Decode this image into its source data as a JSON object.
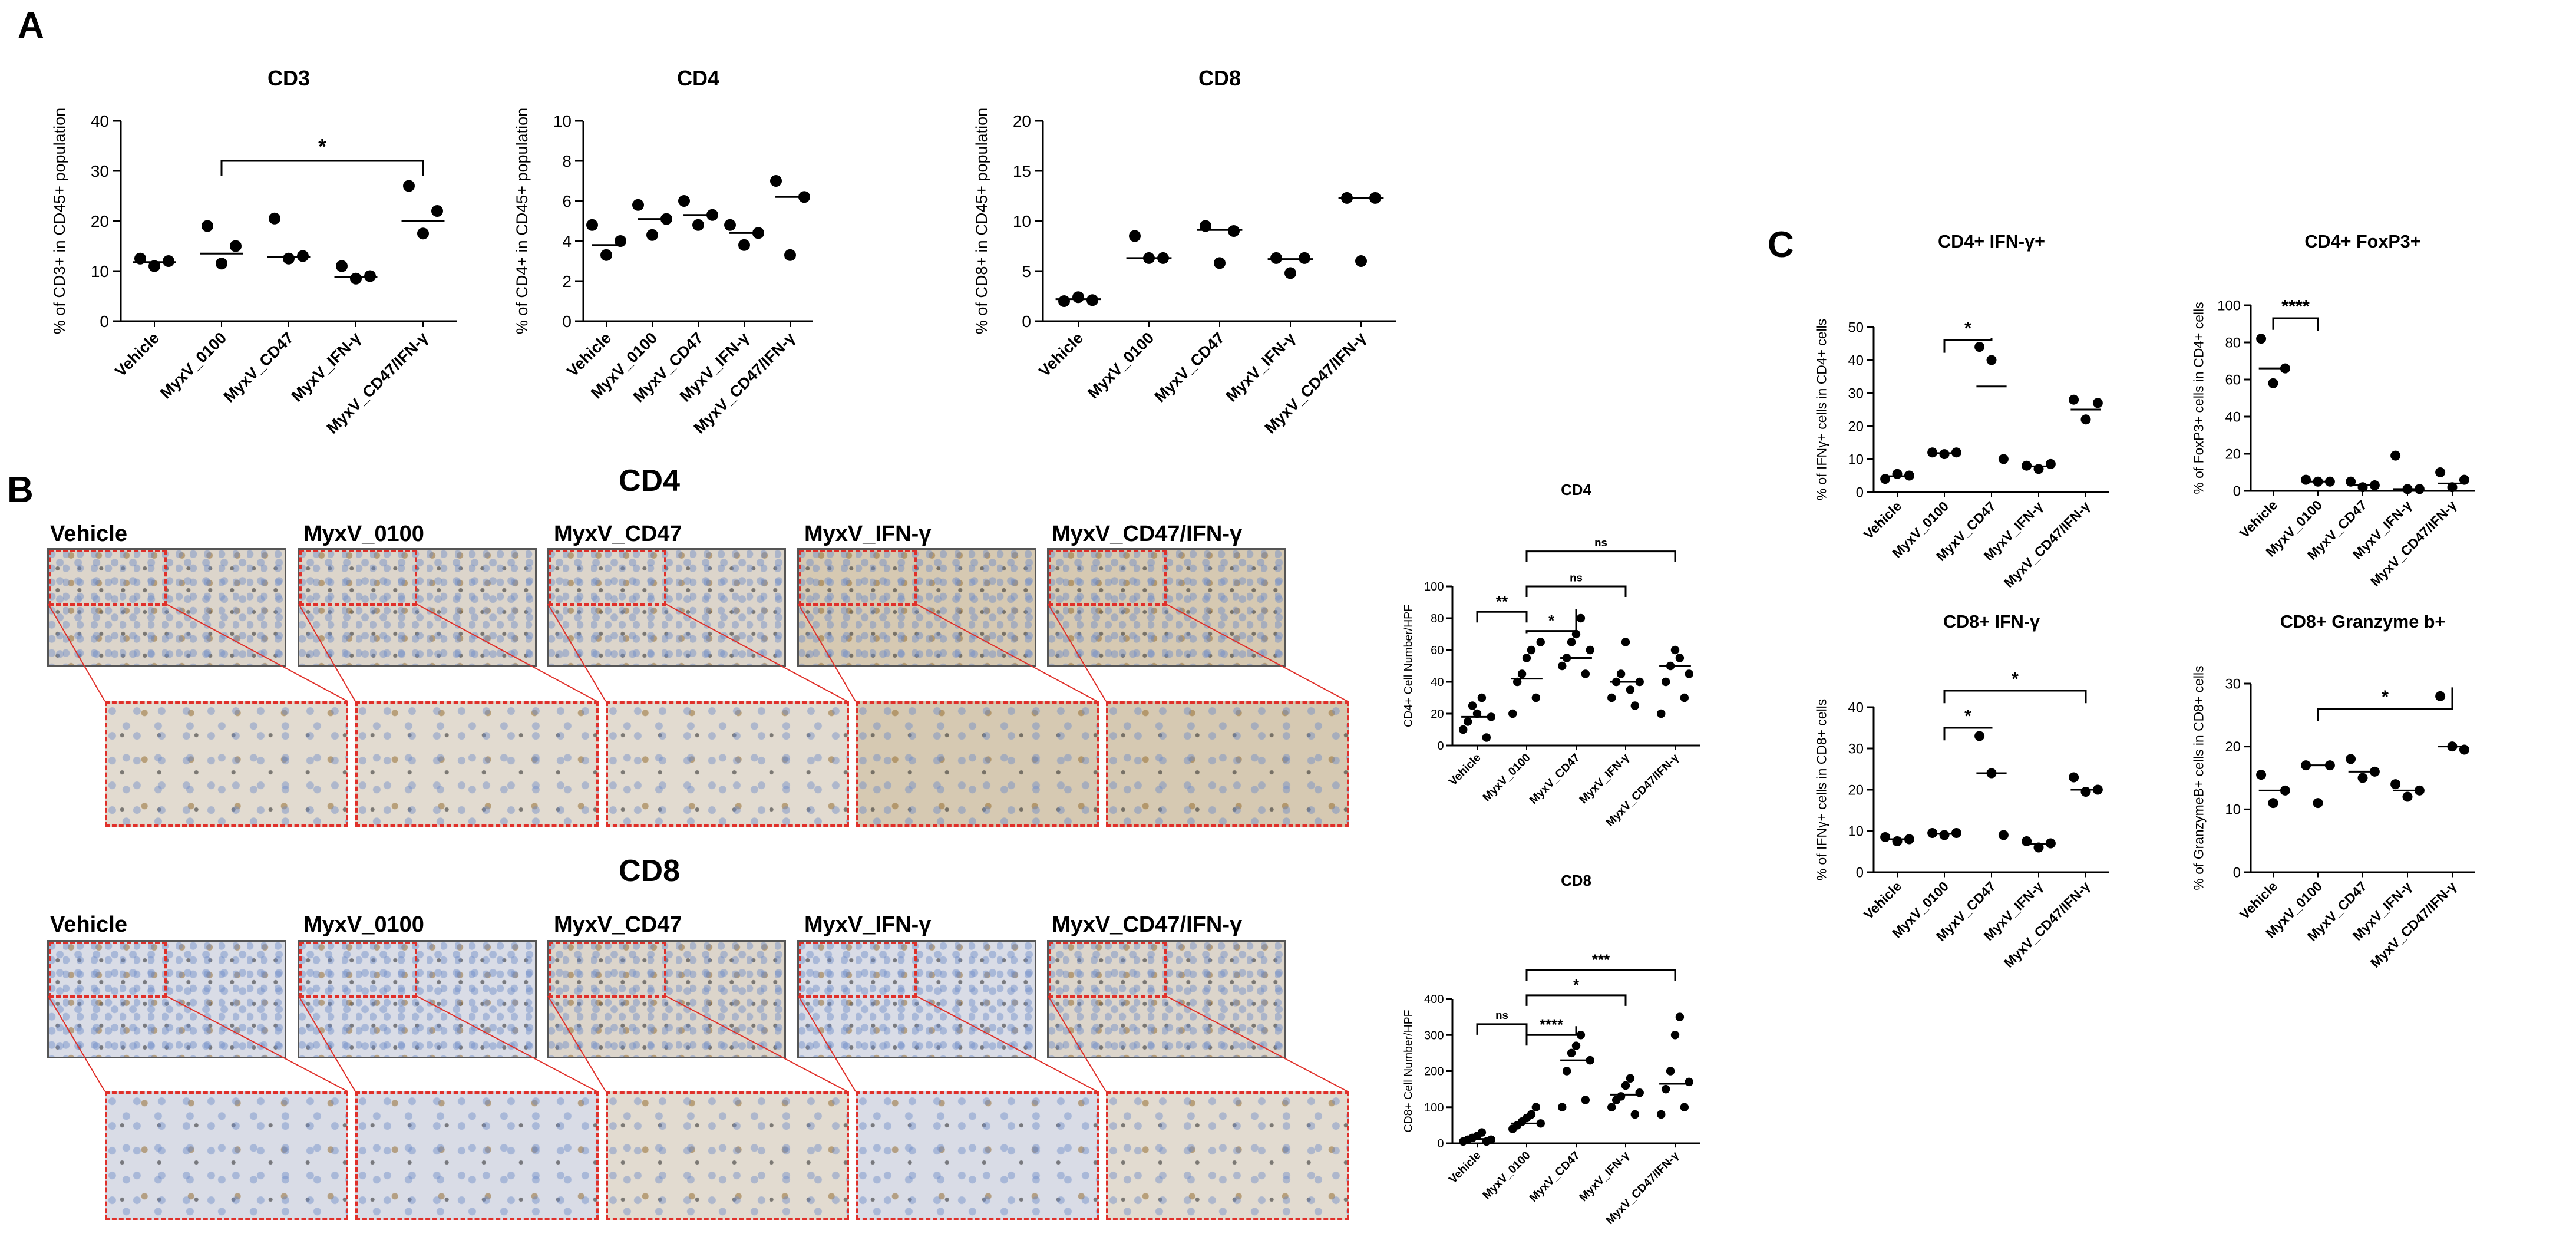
{
  "panels": {
    "A": "A",
    "B": "B",
    "C": "C",
    "b_titles": [
      "CD4",
      "CD8"
    ],
    "groups": [
      "Vehicle",
      "MyxV_0100",
      "MyxV_CD47",
      "MyxV_IFN-γ",
      "MyxV_CD47/IFN-γ"
    ]
  },
  "colors": {
    "marker": "#000000",
    "zoom_border": "#e0302a",
    "frame": "#555555"
  },
  "chart_data": [
    {
      "id": "a-cd3",
      "type": "scatter",
      "title": "CD3",
      "ylabel": "% of CD3+ in CD45+ population",
      "categories": [
        "Vehicle",
        "MyxV_0100",
        "MyxV_CD47",
        "MyxV_IFN-γ",
        "MyxV_CD47/IFN-γ"
      ],
      "ylim": [
        0,
        40
      ],
      "yticks": [
        0,
        10,
        20,
        30,
        40
      ],
      "points": [
        [
          12.5,
          11.0,
          12.0
        ],
        [
          19.0,
          11.5,
          15.0
        ],
        [
          20.5,
          12.5,
          13.0
        ],
        [
          11.0,
          8.5,
          9.0
        ],
        [
          27.0,
          17.5,
          22.0
        ]
      ],
      "means": [
        11.8,
        13.5,
        12.8,
        8.8,
        20.0
      ],
      "sig": [
        {
          "from": 1,
          "to": 4,
          "label": "*",
          "y": 32
        }
      ]
    },
    {
      "id": "a-cd4",
      "type": "scatter",
      "title": "CD4",
      "ylabel": "% of CD4+ in CD45+ population",
      "categories": [
        "Vehicle",
        "MyxV_0100",
        "MyxV_CD47",
        "MyxV_IFN-γ",
        "MyxV_CD47/IFN-γ"
      ],
      "ylim": [
        0,
        10
      ],
      "yticks": [
        0,
        2,
        4,
        6,
        8,
        10
      ],
      "points": [
        [
          4.8,
          3.3,
          4.0
        ],
        [
          5.8,
          4.3,
          5.1
        ],
        [
          6.0,
          4.8,
          5.3
        ],
        [
          4.8,
          3.8,
          4.4
        ],
        [
          7.0,
          3.3,
          6.2
        ]
      ],
      "means": [
        3.8,
        5.1,
        5.3,
        4.4,
        6.2
      ],
      "sig": []
    },
    {
      "id": "a-cd8",
      "type": "scatter",
      "title": "CD8",
      "ylabel": "% of CD8+ in CD45+ population",
      "categories": [
        "Vehicle",
        "MyxV_0100",
        "MyxV_CD47",
        "MyxV_IFN-γ",
        "MyxV_CD47/IFN-γ"
      ],
      "ylim": [
        0,
        20
      ],
      "yticks": [
        0,
        5,
        10,
        15,
        20
      ],
      "points": [
        [
          2.0,
          2.4,
          2.1
        ],
        [
          8.5,
          6.3,
          6.3
        ],
        [
          9.5,
          5.8,
          9.0
        ],
        [
          6.3,
          4.8,
          6.3
        ],
        [
          12.3,
          6.0,
          12.3
        ]
      ],
      "means": [
        2.2,
        6.3,
        9.1,
        6.2,
        12.3
      ],
      "sig": []
    },
    {
      "id": "b-cd4",
      "type": "scatter",
      "title": "CD4",
      "ylabel": "CD4+ Cell Number/HPF",
      "categories": [
        "Vehicle",
        "MyxV_0100",
        "MyxV_CD47",
        "MyxV_IFN-γ",
        "MyxV_CD47/IFN-γ"
      ],
      "ylim": [
        0,
        100
      ],
      "yticks": [
        0,
        20,
        40,
        60,
        80,
        100
      ],
      "points": [
        [
          10,
          15,
          25,
          20,
          30,
          5,
          18
        ],
        [
          20,
          40,
          45,
          55,
          60,
          30,
          65
        ],
        [
          50,
          55,
          65,
          70,
          80,
          45,
          60
        ],
        [
          30,
          40,
          45,
          65,
          35,
          25,
          40
        ],
        [
          20,
          40,
          50,
          60,
          55,
          30,
          45
        ]
      ],
      "means": [
        18,
        42,
        55,
        40,
        50
      ],
      "sig": [
        {
          "from": 0,
          "to": 1,
          "label": "**",
          "y": 84
        },
        {
          "from": 1,
          "to": 2,
          "label": "*",
          "y": 72
        },
        {
          "from": 1,
          "to": 3,
          "label": "ns",
          "y": 100
        },
        {
          "from": 1,
          "to": 4,
          "label": "ns",
          "y": 122
        }
      ]
    },
    {
      "id": "b-cd8",
      "type": "scatter",
      "title": "CD8",
      "ylabel": "CD8+ Cell Number/HPF",
      "categories": [
        "Vehicle",
        "MyxV_0100",
        "MyxV_CD47",
        "MyxV_IFN-γ",
        "MyxV_CD47/IFN-γ"
      ],
      "ylim": [
        0,
        400
      ],
      "yticks": [
        0,
        100,
        200,
        300,
        400
      ],
      "points": [
        [
          5,
          10,
          15,
          20,
          30,
          5,
          10
        ],
        [
          40,
          50,
          60,
          70,
          80,
          100,
          55
        ],
        [
          100,
          200,
          250,
          270,
          300,
          120,
          230
        ],
        [
          100,
          120,
          130,
          160,
          180,
          80,
          140
        ],
        [
          80,
          150,
          200,
          300,
          350,
          100,
          170
        ]
      ],
      "means": [
        12,
        55,
        230,
        135,
        165
      ],
      "sig": [
        {
          "from": 0,
          "to": 1,
          "label": "ns",
          "y": 330
        },
        {
          "from": 1,
          "to": 2,
          "label": "****",
          "y": 300
        },
        {
          "from": 1,
          "to": 3,
          "label": "*",
          "y": 410
        },
        {
          "from": 1,
          "to": 4,
          "label": "***",
          "y": 480
        }
      ]
    },
    {
      "id": "c-ifng4",
      "type": "scatter",
      "title": "CD4+ IFN-γ+",
      "ylabel": "% of IFNγ+ cells in CD4+ cells",
      "categories": [
        "Vehicle",
        "MyxV_0100",
        "MyxV_CD47",
        "MyxV_IFN-γ",
        "MyxV_CD47/IFN-γ"
      ],
      "ylim": [
        0,
        50
      ],
      "yticks": [
        0,
        10,
        20,
        30,
        40,
        50
      ],
      "points": [
        [
          4.0,
          5.5,
          5.0
        ],
        [
          12.0,
          11.5,
          12.0
        ],
        [
          44.0,
          40.0,
          10.0
        ],
        [
          8.0,
          7.0,
          8.5
        ],
        [
          28.0,
          22.0,
          27.0
        ]
      ],
      "means": [
        4.8,
        11.8,
        32.0,
        7.8,
        25.0
      ],
      "sig": [
        {
          "from": 1,
          "to": 2,
          "label": "*",
          "y": 46
        }
      ]
    },
    {
      "id": "c-foxp3",
      "type": "scatter",
      "title": "CD4+ FoxP3+",
      "ylabel": "% of FoxP3+ cells in CD4+ cells",
      "categories": [
        "Vehicle",
        "MyxV_0100",
        "MyxV_CD47",
        "MyxV_IFN-γ",
        "MyxV_CD47/IFN-γ"
      ],
      "ylim": [
        0,
        100
      ],
      "yticks": [
        0,
        20,
        40,
        60,
        80,
        100
      ],
      "points": [
        [
          82,
          58,
          66
        ],
        [
          6,
          5,
          5
        ],
        [
          5,
          2,
          3
        ],
        [
          19,
          1,
          1
        ],
        [
          10,
          2,
          6
        ]
      ],
      "means": [
        66,
        5,
        3,
        1,
        4
      ],
      "sig": [
        {
          "from": 0,
          "to": 1,
          "label": "****",
          "y": 93
        }
      ]
    },
    {
      "id": "c-ifng8",
      "type": "scatter",
      "title": "CD8+ IFN-γ",
      "ylabel": "% of IFNγ+ cells in CD8+ cells",
      "categories": [
        "Vehicle",
        "MyxV_0100",
        "MyxV_CD47",
        "MyxV_IFN-γ",
        "MyxV_CD47/IFN-γ"
      ],
      "ylim": [
        0,
        40
      ],
      "yticks": [
        0,
        10,
        20,
        30,
        40
      ],
      "points": [
        [
          8.5,
          7.5,
          8.0
        ],
        [
          9.5,
          9.0,
          9.5
        ],
        [
          33.0,
          24.0,
          9.0
        ],
        [
          7.5,
          6.0,
          7.0
        ],
        [
          23.0,
          19.5,
          20.0
        ]
      ],
      "means": [
        8.0,
        9.3,
        24.0,
        6.8,
        20.0
      ],
      "sig": [
        {
          "from": 1,
          "to": 2,
          "label": "*",
          "y": 35
        },
        {
          "from": 1,
          "to": 4,
          "label": "*",
          "y": 44
        }
      ]
    },
    {
      "id": "c-gzmb",
      "type": "scatter",
      "title": "CD8+ Granzyme b+",
      "ylabel": "% of GranzymeB+ cells in CD8+ cells",
      "categories": [
        "Vehicle",
        "MyxV_0100",
        "MyxV_CD47",
        "MyxV_IFN-γ",
        "MyxV_CD47/IFN-γ"
      ],
      "ylim": [
        0,
        30
      ],
      "yticks": [
        0,
        10,
        20,
        30
      ],
      "points": [
        [
          15.5,
          11.0,
          13.0
        ],
        [
          17.0,
          11.0,
          17.0
        ],
        [
          18.0,
          15.0,
          16.0
        ],
        [
          14.0,
          12.0,
          13.0
        ],
        [
          28.0,
          20.0,
          19.5
        ]
      ],
      "means": [
        13.0,
        17.0,
        16.0,
        13.0,
        20.0
      ],
      "sig": [
        {
          "from": 1,
          "to": 4,
          "label": "*",
          "y": 26
        }
      ]
    }
  ]
}
